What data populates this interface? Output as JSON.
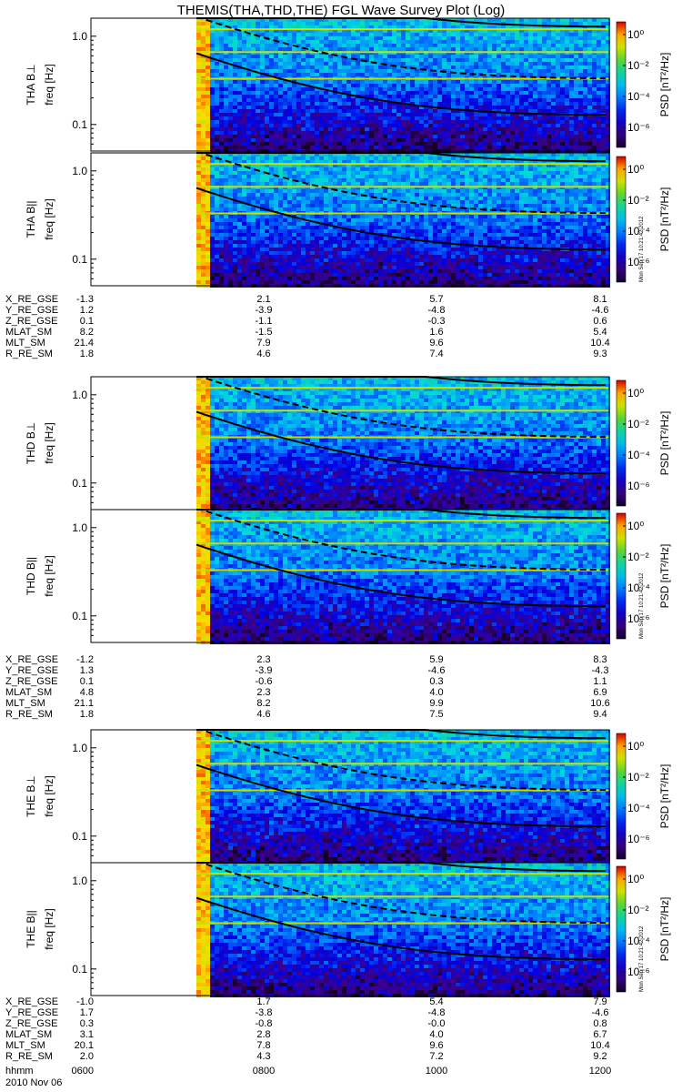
{
  "chart_data": {
    "type": "heatmap",
    "title": "THEMIS(THA,THD,THE) FGL Wave Survey Plot (Log)",
    "panels": [
      {
        "probe": "THA",
        "label": "THA B⊥",
        "ylabel": "freq [Hz]",
        "ylim": [
          0.05,
          1.6
        ],
        "yscale": "log",
        "yticks": [
          "1.0",
          "0.1"
        ]
      },
      {
        "probe": "THA",
        "label": "THA B||",
        "ylabel": "freq [Hz]",
        "ylim": [
          0.05,
          1.6
        ],
        "yscale": "log",
        "yticks": [
          "1.0",
          "0.1"
        ]
      },
      {
        "probe": "THD",
        "label": "THD B⊥",
        "ylabel": "freq [Hz]",
        "ylim": [
          0.05,
          1.6
        ],
        "yscale": "log",
        "yticks": [
          "1.0",
          "0.1"
        ]
      },
      {
        "probe": "THD",
        "label": "THD B||",
        "ylabel": "freq [Hz]",
        "ylim": [
          0.05,
          1.6
        ],
        "yscale": "log",
        "yticks": [
          "1.0",
          "0.1"
        ]
      },
      {
        "probe": "THE",
        "label": "THE B⊥",
        "ylabel": "freq [Hz]",
        "ylim": [
          0.05,
          1.6
        ],
        "yscale": "log",
        "yticks": [
          "1.0",
          "0.1"
        ]
      },
      {
        "probe": "THE",
        "label": "THE B||",
        "ylabel": "freq [Hz]",
        "ylim": [
          0.05,
          1.6
        ],
        "yscale": "log",
        "yticks": [
          "1.0",
          "0.1"
        ]
      }
    ],
    "colorbar": {
      "label": "PSD [nT²/Hz]",
      "scale": "log",
      "range": [
        1e-07,
        30
      ],
      "ticks": [
        "10⁰",
        "10⁻²",
        "10⁻⁴",
        "10⁻⁶"
      ],
      "stamp": "Mon Sep 17 10:21:42 2012"
    },
    "x_time": {
      "label_row": "hhmm",
      "date": "2010 Nov 06",
      "ticks": [
        "0600",
        "0800",
        "1000",
        "1200"
      ]
    },
    "ephemeris": [
      {
        "probe": "THA",
        "rows": [
          {
            "name": "X_RE_GSE",
            "values": [
              "-1.3",
              "2.1",
              "5.7",
              "8.1"
            ]
          },
          {
            "name": "Y_RE_GSE",
            "values": [
              "1.2",
              "-3.9",
              "-4.8",
              "-4.6"
            ]
          },
          {
            "name": "Z_RE_GSE",
            "values": [
              "0.1",
              "-1.1",
              "-0.3",
              "0.6"
            ]
          },
          {
            "name": "MLAT_SM",
            "values": [
              "8.2",
              "-1.5",
              "1.6",
              "5.4"
            ]
          },
          {
            "name": "MLT_SM",
            "values": [
              "21.4",
              "7.9",
              "9.6",
              "10.4"
            ]
          },
          {
            "name": "R_RE_SM",
            "values": [
              "1.8",
              "4.6",
              "7.4",
              "9.3"
            ]
          }
        ]
      },
      {
        "probe": "THD",
        "rows": [
          {
            "name": "X_RE_GSE",
            "values": [
              "-1.2",
              "2.3",
              "5.9",
              "8.3"
            ]
          },
          {
            "name": "Y_RE_GSE",
            "values": [
              "1.3",
              "-3.9",
              "-4.6",
              "-4.3"
            ]
          },
          {
            "name": "Z_RE_GSE",
            "values": [
              "0.1",
              "-0.6",
              "0.3",
              "1.1"
            ]
          },
          {
            "name": "MLAT_SM",
            "values": [
              "4.8",
              "2.3",
              "4.0",
              "6.9"
            ]
          },
          {
            "name": "MLT_SM",
            "values": [
              "21.1",
              "8.2",
              "9.9",
              "10.6"
            ]
          },
          {
            "name": "R_RE_SM",
            "values": [
              "1.8",
              "4.6",
              "7.5",
              "9.4"
            ]
          }
        ]
      },
      {
        "probe": "THE",
        "rows": [
          {
            "name": "X_RE_GSE",
            "values": [
              "-1.0",
              "1.7",
              "5.4",
              "7.9"
            ]
          },
          {
            "name": "Y_RE_GSE",
            "values": [
              "1.7",
              "-3.8",
              "-4.8",
              "-4.6"
            ]
          },
          {
            "name": "Z_RE_GSE",
            "values": [
              "0.3",
              "-0.8",
              "-0.0",
              "0.8"
            ]
          },
          {
            "name": "MLAT_SM",
            "values": [
              "3.1",
              "2.8",
              "4.0",
              "6.7"
            ]
          },
          {
            "name": "MLT_SM",
            "values": [
              "20.1",
              "7.8",
              "9.6",
              "10.4"
            ]
          },
          {
            "name": "R_RE_SM",
            "values": [
              "2.0",
              "4.3",
              "7.2",
              "9.2"
            ]
          }
        ]
      }
    ]
  }
}
